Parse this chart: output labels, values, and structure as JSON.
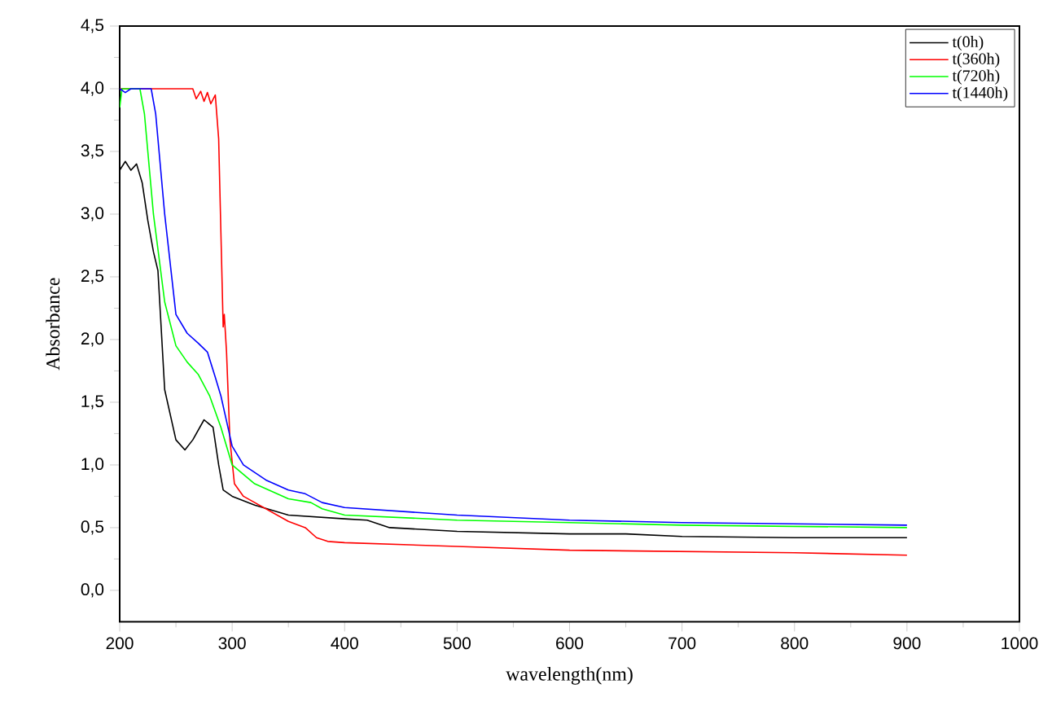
{
  "chart_data": {
    "type": "line",
    "xlabel": "wavelength(nm)",
    "ylabel": "Absorbance",
    "xlim": [
      200,
      1000
    ],
    "xticks": [
      200,
      300,
      400,
      500,
      600,
      700,
      800,
      900,
      1000
    ],
    "ylim": [
      -0.25,
      4.5
    ],
    "yticks": [
      {
        "value": 0,
        "label": "0,0"
      },
      {
        "value": 0.5,
        "label": "0,5"
      },
      {
        "value": 1,
        "label": "1,0"
      },
      {
        "value": 1.5,
        "label": "1,5"
      },
      {
        "value": 2,
        "label": "2,0"
      },
      {
        "value": 2.5,
        "label": "2,5"
      },
      {
        "value": 3,
        "label": "3,0"
      },
      {
        "value": 3.5,
        "label": "3,5"
      },
      {
        "value": 4,
        "label": "4,0"
      },
      {
        "value": 4.5,
        "label": "4,5"
      }
    ],
    "grid": false,
    "legend": "top right",
    "marker": "none",
    "line_style": "solid",
    "series": [
      {
        "name": "t(0h)",
        "color": "#000000",
        "x": [
          200,
          205,
          210,
          215,
          220,
          225,
          230,
          234,
          240,
          250,
          258,
          265,
          275,
          283,
          288,
          292,
          300,
          320,
          350,
          400,
          420,
          440,
          500,
          600,
          650,
          700,
          800,
          900
        ],
        "values": [
          3.35,
          3.42,
          3.35,
          3.4,
          3.25,
          2.95,
          2.7,
          2.55,
          1.6,
          1.2,
          1.12,
          1.2,
          1.36,
          1.3,
          1.0,
          0.8,
          0.75,
          0.68,
          0.6,
          0.57,
          0.56,
          0.5,
          0.47,
          0.45,
          0.45,
          0.43,
          0.42,
          0.42
        ]
      },
      {
        "name": "t(360h)",
        "color": "#ff0000",
        "x": [
          200,
          240,
          265,
          268,
          272,
          275,
          278,
          281,
          285,
          288,
          292,
          293,
          295,
          298,
          302,
          310,
          330,
          350,
          365,
          375,
          385,
          400,
          500,
          600,
          700,
          800,
          900
        ],
        "values": [
          4.0,
          4.0,
          4.0,
          3.92,
          3.98,
          3.9,
          3.97,
          3.88,
          3.95,
          3.6,
          2.1,
          2.2,
          1.9,
          1.2,
          0.85,
          0.75,
          0.65,
          0.55,
          0.5,
          0.42,
          0.39,
          0.38,
          0.35,
          0.32,
          0.31,
          0.3,
          0.28
        ]
      },
      {
        "name": "t(720h)",
        "color": "#00ff00",
        "x": [
          200,
          202,
          218,
          222,
          230,
          240,
          250,
          260,
          270,
          280,
          290,
          300,
          320,
          350,
          370,
          380,
          400,
          500,
          600,
          700,
          800,
          900
        ],
        "values": [
          3.85,
          4.0,
          4.0,
          3.8,
          3.0,
          2.3,
          1.95,
          1.82,
          1.72,
          1.55,
          1.3,
          1.0,
          0.85,
          0.73,
          0.7,
          0.65,
          0.6,
          0.56,
          0.54,
          0.52,
          0.51,
          0.5
        ]
      },
      {
        "name": "t(1440h)",
        "color": "#0000ff",
        "x": [
          200,
          205,
          210,
          228,
          232,
          240,
          250,
          260,
          270,
          278,
          285,
          290,
          300,
          310,
          330,
          350,
          365,
          380,
          400,
          500,
          600,
          700,
          800,
          900
        ],
        "values": [
          4.0,
          3.97,
          4.0,
          4.0,
          3.8,
          3.0,
          2.2,
          2.05,
          1.97,
          1.9,
          1.7,
          1.55,
          1.15,
          1.0,
          0.88,
          0.8,
          0.77,
          0.7,
          0.66,
          0.6,
          0.56,
          0.54,
          0.53,
          0.52
        ]
      }
    ]
  }
}
